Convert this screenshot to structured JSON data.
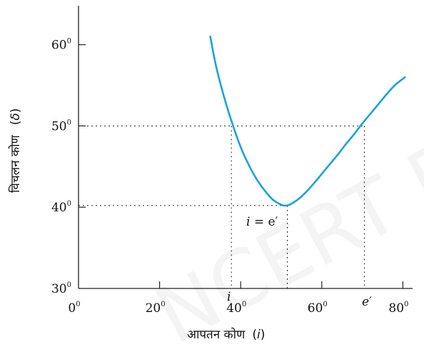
{
  "chart_data": {
    "type": "line",
    "xlabel": "आपतन कोण",
    "xlabel_symbol": "i",
    "ylabel": "विचलन कोण",
    "ylabel_symbol": "δ",
    "xlim": [
      0,
      80
    ],
    "ylim": [
      30,
      60
    ],
    "x_ticks": [
      0,
      20,
      40,
      60,
      80
    ],
    "y_ticks": [
      30,
      40,
      50,
      60
    ],
    "tick_suffix": "0",
    "grid": false,
    "line_color": "#1aa3dd",
    "series": [
      {
        "x": [
          32.5,
          34,
          36,
          38,
          40,
          42,
          44,
          46,
          48,
          50,
          51,
          52,
          54,
          56,
          58,
          60,
          62,
          64,
          66,
          68,
          70,
          72,
          74,
          76,
          78,
          80.5
        ],
        "y": [
          61,
          57.2,
          53.4,
          50.2,
          47.4,
          45.2,
          43.4,
          42,
          40.9,
          40.3,
          40.2,
          40.3,
          40.9,
          41.8,
          42.9,
          44.1,
          45.3,
          46.5,
          47.8,
          49,
          50.3,
          51.5,
          52.7,
          53.9,
          55,
          56
        ]
      }
    ],
    "reference_lines": [
      {
        "y": 50,
        "x_left": 37.7,
        "x_right": 70.5
      },
      {
        "y": 40.2,
        "x_at": 51.5
      }
    ],
    "annotations": {
      "min_label_lhs": "i",
      "min_label_rhs": " = e′",
      "left_intersect_label": "i",
      "right_intersect_label": "e′"
    }
  },
  "watermark": "NCERT Published"
}
